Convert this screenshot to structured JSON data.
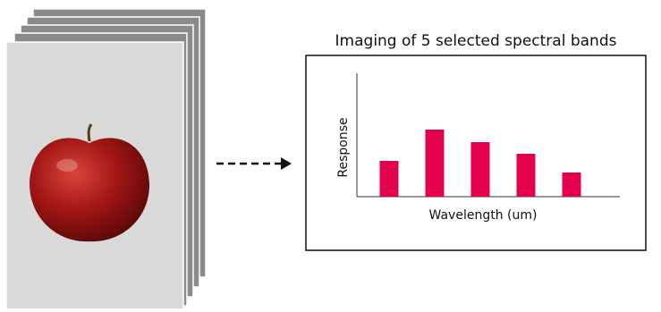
{
  "chart_data": {
    "type": "bar",
    "title": "Imaging of 5 selected spectral bands",
    "x_label": "Wavelength (um)",
    "y_label": "Response",
    "categories": [
      null,
      null,
      null,
      null,
      null
    ],
    "values": [
      40,
      75,
      61,
      48,
      27
    ],
    "color": "#e2004f",
    "ylim": [
      0,
      140
    ]
  }
}
